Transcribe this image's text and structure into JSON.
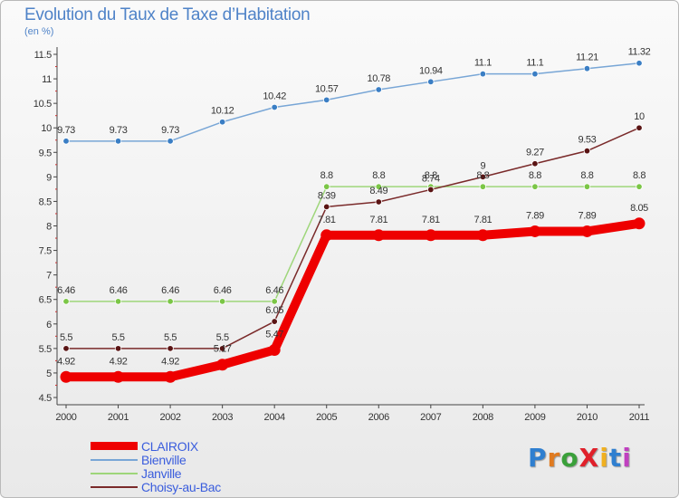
{
  "title": "Evolution du Taux de Taxe d’Habitation",
  "subtitle": "(en %)",
  "logo_text": "ProXiti",
  "logo_colors": [
    "#2f7fd0",
    "#e07a1f",
    "#3aa03a",
    "#e0202a",
    "#f0b020",
    "#2f7fd0",
    "#c040c0"
  ],
  "chart_data": {
    "type": "line",
    "x": [
      "2000",
      "2001",
      "2002",
      "2003",
      "2004",
      "2005",
      "2006",
      "2007",
      "2008",
      "2009",
      "2010",
      "2011"
    ],
    "ylim": [
      4.5,
      11.5
    ],
    "yticks": [
      "4.5",
      "5",
      "5.5",
      "6",
      "6.5",
      "7",
      "7.5",
      "8",
      "8.5",
      "9",
      "9.5",
      "10",
      "10.5",
      "11",
      "11.5"
    ],
    "grid": false,
    "legend_position": "bottom-left",
    "series": [
      {
        "name": "CLAIROIX",
        "color": "#ee0000",
        "thick": true,
        "values": [
          4.92,
          4.92,
          4.92,
          5.17,
          5.47,
          7.81,
          7.81,
          7.81,
          7.81,
          7.89,
          7.89,
          8.05
        ],
        "labels": [
          "4.92",
          "4.92",
          "4.92",
          "5.17",
          "5.47",
          "7.81",
          "7.81",
          "7.81",
          "7.81",
          "7.89",
          "7.89",
          "8.05"
        ]
      },
      {
        "name": "Bienville",
        "color": "#78a6d6",
        "marker": "#3a7ec4",
        "thick": false,
        "values": [
          9.73,
          9.73,
          9.73,
          10.12,
          10.42,
          10.57,
          10.78,
          10.94,
          11.1,
          11.1,
          11.21,
          11.32
        ],
        "labels": [
          "9.73",
          "9.73",
          "9.73",
          "10.12",
          "10.42",
          "10.57",
          "10.78",
          "10.94",
          "11.1",
          "11.1",
          "11.21",
          "11.32"
        ]
      },
      {
        "name": "Janville",
        "color": "#9ed67a",
        "marker": "#7bc646",
        "thick": false,
        "values": [
          6.46,
          6.46,
          6.46,
          6.46,
          6.46,
          8.8,
          8.8,
          8.8,
          8.8,
          8.8,
          8.8,
          8.8
        ],
        "labels": [
          "6.46",
          "6.46",
          "6.46",
          "6.46",
          "6.46",
          "8.8",
          "8.8",
          "8.8",
          "8.8",
          "8.8",
          "8.8",
          "8.8"
        ]
      },
      {
        "name": "Choisy-au-Bac",
        "color": "#7a2a2a",
        "marker": "#5a1414",
        "thick": false,
        "values": [
          5.5,
          5.5,
          5.5,
          5.5,
          6.05,
          8.39,
          8.49,
          8.74,
          9,
          9.27,
          9.53,
          10
        ],
        "labels": [
          "5.5",
          "5.5",
          "5.5",
          "5.5",
          "6.05",
          "8.39",
          "8.49",
          "8.74",
          "9",
          "9.27",
          "9.53",
          "10"
        ]
      }
    ]
  }
}
